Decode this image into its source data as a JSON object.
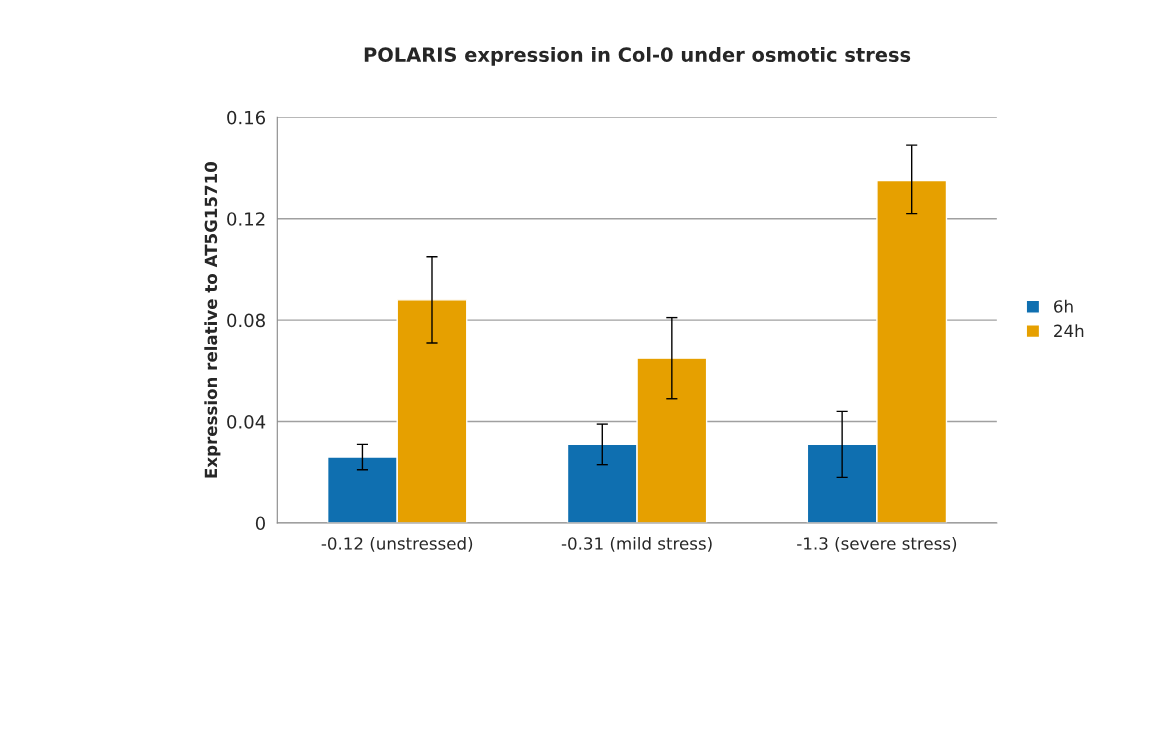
{
  "chart_data": {
    "type": "bar",
    "title": "POLARIS expression in Col-0 under osmotic stress",
    "ylabel": "Expression relative to AT5G15710",
    "categories": [
      "-0.12 (unstressed)",
      "-0.31 (mild stress)",
      "-1.3 (severe stress)"
    ],
    "series": [
      {
        "name": "6h",
        "color": "#0f6fb0",
        "values": [
          0.026,
          0.031,
          0.031
        ],
        "errors": [
          [
            0.021,
            0.031
          ],
          [
            0.023,
            0.039
          ],
          [
            0.018,
            0.044
          ]
        ]
      },
      {
        "name": "24h",
        "color": "#e6a000",
        "values": [
          0.088,
          0.065,
          0.135
        ],
        "errors": [
          [
            0.071,
            0.105
          ],
          [
            0.049,
            0.081
          ],
          [
            0.122,
            0.149
          ]
        ]
      }
    ],
    "ylim": [
      0,
      0.16
    ],
    "yticks": [
      0,
      0.04,
      0.08,
      0.12,
      0.16
    ],
    "grid": "y",
    "legend": "right"
  }
}
